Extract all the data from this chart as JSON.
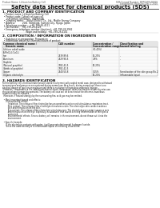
{
  "bg_color": "#ffffff",
  "page_bg": "#ffffff",
  "header_left": "Product Name: Lithium Ion Battery Cell",
  "header_right_line1": "SDS Control Number: BEPCSDS-00010",
  "header_right_line2": "Established / Revision: Dec.1.2010",
  "title": "Safety data sheet for chemical products (SDS)",
  "section1_title": "1. PRODUCT AND COMPANY IDENTIFICATION",
  "section1_lines": [
    "  • Product name: Lithium Ion Battery Cell",
    "  • Product code: Cylindrical-type cell",
    "      (UR18650J, UR18650L, UR18650A)",
    "  • Company name:    Sanyo Electric Co., Ltd., Mobile Energy Company",
    "  • Address:          2001  Kamitoda, Sumoto City, Hyogo, Japan",
    "  • Telephone number:    +81-799-26-4111",
    "  • Fax number:   +81-799-26-4125",
    "  • Emergency telephone number (daytime): +81-799-26-3962",
    "                                 (Night and holiday): +81-799-26-4101"
  ],
  "section2_title": "2. COMPOSITION / INFORMATION ON INGREDIENTS",
  "section2_lines": [
    "  • Substance or preparation: Preparation",
    "  • Information about the chemical nature of product:"
  ],
  "table_col_headers": [
    [
      "Common chemical name /",
      "   Generic name"
    ],
    [
      "CAS number",
      ""
    ],
    [
      "Concentration /",
      "Concentration range"
    ],
    [
      "Classification and",
      "hazard labeling"
    ]
  ],
  "table_rows": [
    [
      "Lithium cobalt oxide",
      "",
      "(30-40%)",
      ""
    ],
    [
      "(LiMnO₂/LiCoO₂)",
      "",
      "",
      ""
    ],
    [
      "Iron",
      "7439-89-6",
      "15-25%",
      "-"
    ],
    [
      "Aluminum",
      "7429-90-5",
      "2-8%",
      "-"
    ],
    [
      "Graphite",
      "",
      "",
      ""
    ],
    [
      "(Natural graphite)",
      "7782-42-5",
      "10-25%",
      "-"
    ],
    [
      "(Artificial graphite)",
      "7782-42-5",
      "",
      ""
    ],
    [
      "Copper",
      "7440-50-8",
      "5-15%",
      "Sensitization of the skin group No.2"
    ],
    [
      "Organic electrolyte",
      "",
      "10-20%",
      "Inflammable liquid"
    ]
  ],
  "section3_title": "3. HAZARDS IDENTIFICATION",
  "section3_text": [
    "For the battery cell, chemical materials are stored in a hermetically sealed metal case, designed to withstand",
    "temperatures and pressures encountered during normal use. As a result, during normal use, there is no",
    "physical danger of ignition or explosion and there is no danger of hazardous materials leakage.",
    "  However, if exposed to a fire, added mechanical shock, decompose, when electrolytes release by miss use,",
    "the gas release version be operated. The battery cell case will be breached at the extreme, hazardous",
    "materials may be released.",
    "  Moreover, if heated strongly by the surrounding fire, acid gas may be emitted.",
    "",
    "  • Most important hazard and effects:",
    "      Human health effects:",
    "         Inhalation: The release of the electrolyte has an anesthesia action and stimulates a respiratory tract.",
    "         Skin contact: The release of the electrolyte stimulates a skin. The electrolyte skin contact causes a",
    "         sore and stimulation on the skin.",
    "         Eye contact: The release of the electrolyte stimulates eyes. The electrolyte eye contact causes a sore",
    "         and stimulation on the eye. Especially, a substance that causes a strong inflammation of the eyes is",
    "         contained.",
    "         Environmental effects: Since a battery cell remains in the environment, do not throw out it into the",
    "         environment.",
    "",
    "  • Specific hazards:",
    "      If the electrolyte contacts with water, it will generate detrimental hydrogen fluoride.",
    "      Since the used electrolyte is inflammable liquid, do not bring close to fire."
  ]
}
